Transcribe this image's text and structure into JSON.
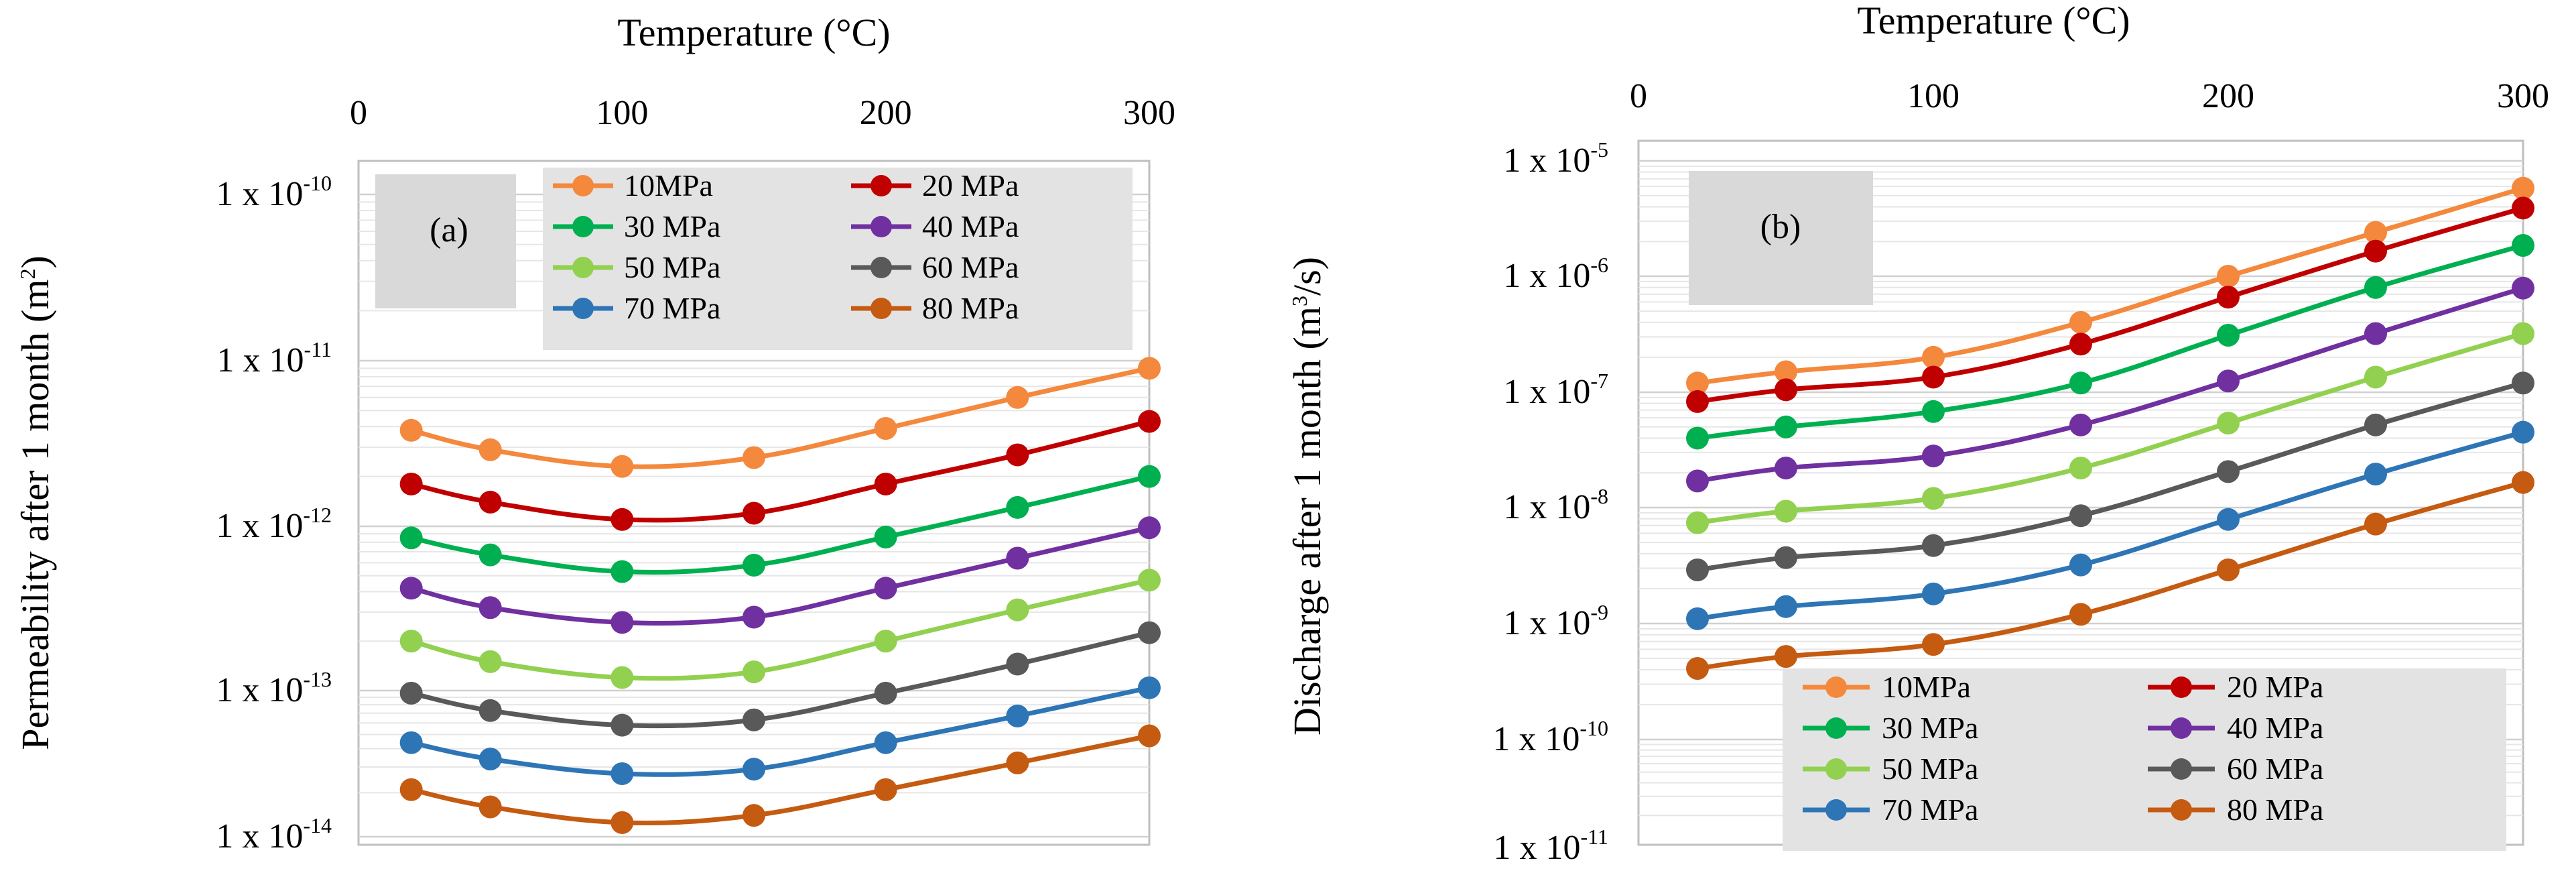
{
  "chart_data": [
    {
      "id": "a",
      "type": "line",
      "panel_label": "(a)",
      "xlabel": "Temperature (°C)",
      "ylabel": "Permeability after 1 month (m²)",
      "ylabel_parts": [
        "Permeability after 1 month (m",
        "2",
        ")"
      ],
      "xlim": [
        0,
        300
      ],
      "xticks": [
        "0",
        "100",
        "200",
        "300"
      ],
      "ylog_range": [
        -14.1,
        -9.9
      ],
      "ytick_labels": [
        {
          "exp": -10,
          "base": "1 x 10",
          "sup": "-10"
        },
        {
          "exp": -11,
          "base": "1 x 10",
          "sup": "-11"
        },
        {
          "exp": -12,
          "base": "1 x 10",
          "sup": "-12"
        },
        {
          "exp": -13,
          "base": "1 x 10",
          "sup": "-13"
        },
        {
          "exp": -14,
          "base": "1 x 10",
          "sup": "-14"
        }
      ],
      "x": [
        20,
        50,
        100,
        150,
        200,
        250,
        300
      ],
      "series": [
        {
          "name": "10MPa",
          "color": "#f4883c",
          "values": [
            3.8e-12,
            2.9e-12,
            2.3e-12,
            2.6e-12,
            3.9e-12,
            6e-12,
            9e-12
          ]
        },
        {
          "name": "20 MPa",
          "color": "#c00000",
          "values": [
            1.8e-12,
            1.4e-12,
            1.1e-12,
            1.2e-12,
            1.8e-12,
            2.7e-12,
            4.3e-12
          ]
        },
        {
          "name": "30 MPa",
          "color": "#00b050",
          "values": [
            8.5e-13,
            6.7e-13,
            5.3e-13,
            5.8e-13,
            8.6e-13,
            1.3e-12,
            2e-12
          ]
        },
        {
          "name": "40 MPa",
          "color": "#7030a0",
          "values": [
            4.2e-13,
            3.2e-13,
            2.6e-13,
            2.8e-13,
            4.2e-13,
            6.4e-13,
            9.8e-13
          ]
        },
        {
          "name": "50 MPa",
          "color": "#92d050",
          "values": [
            2e-13,
            1.5e-13,
            1.2e-13,
            1.3e-13,
            2e-13,
            3.1e-13,
            4.7e-13
          ]
        },
        {
          "name": "60 MPa",
          "color": "#595959",
          "values": [
            9.6e-14,
            7.3e-14,
            5.8e-14,
            6.3e-14,
            9.6e-14,
            1.45e-13,
            2.25e-13
          ]
        },
        {
          "name": "70 MPa",
          "color": "#2e75b6",
          "values": [
            4.4e-14,
            3.4e-14,
            2.7e-14,
            2.9e-14,
            4.4e-14,
            6.7e-14,
            1.04e-13
          ]
        },
        {
          "name": "80 MPa",
          "color": "#c55a11",
          "values": [
            2.1e-14,
            1.6e-14,
            1.25e-14,
            1.4e-14,
            2.1e-14,
            3.2e-14,
            4.9e-14
          ]
        }
      ]
    },
    {
      "id": "b",
      "type": "line",
      "panel_label": "(b)",
      "xlabel": "Temperature (°C)",
      "ylabel": "Discharge after 1 month (m³/s)",
      "ylabel_parts": [
        "Discharge after 1 month (m",
        "3",
        "/s)"
      ],
      "xlim": [
        0,
        300
      ],
      "xticks": [
        "0",
        "100",
        "200",
        "300"
      ],
      "ylog_range": [
        -11,
        -5
      ],
      "ytick_labels": [
        {
          "exp": -5,
          "base": "1 x 10",
          "sup": "-5"
        },
        {
          "exp": -6,
          "base": "1 x 10",
          "sup": "-6"
        },
        {
          "exp": -7,
          "base": "1 x 10",
          "sup": "-7"
        },
        {
          "exp": -8,
          "base": "1 x 10",
          "sup": "-8"
        },
        {
          "exp": -9,
          "base": "1 x 10",
          "sup": "-9"
        },
        {
          "exp": -10,
          "base": "1 x 10",
          "sup": "-10"
        },
        {
          "exp": -11,
          "base": "1 x 10",
          "sup": "-11"
        }
      ],
      "x": [
        20,
        50,
        100,
        150,
        200,
        250,
        300
      ],
      "series": [
        {
          "name": "10MPa",
          "color": "#f4883c",
          "values": [
            1.2e-07,
            1.5e-07,
            2e-07,
            4e-07,
            1e-06,
            2.4e-06,
            5.8e-06
          ]
        },
        {
          "name": "20 MPa",
          "color": "#c00000",
          "values": [
            8.3e-08,
            1.05e-07,
            1.35e-07,
            2.6e-07,
            6.6e-07,
            1.65e-06,
            3.9e-06
          ]
        },
        {
          "name": "30 MPa",
          "color": "#00b050",
          "values": [
            4e-08,
            5e-08,
            6.8e-08,
            1.2e-07,
            3.1e-07,
            8e-07,
            1.85e-06
          ]
        },
        {
          "name": "40 MPa",
          "color": "#7030a0",
          "values": [
            1.7e-08,
            2.2e-08,
            2.8e-08,
            5.2e-08,
            1.25e-07,
            3.2e-07,
            7.9e-07
          ]
        },
        {
          "name": "50 MPa",
          "color": "#92d050",
          "values": [
            7.4e-09,
            9.3e-09,
            1.2e-08,
            2.2e-08,
            5.4e-08,
            1.35e-07,
            3.2e-07
          ]
        },
        {
          "name": "60 MPa",
          "color": "#595959",
          "values": [
            2.9e-09,
            3.7e-09,
            4.7e-09,
            8.5e-09,
            2.05e-08,
            5.2e-08,
            1.2e-07
          ]
        },
        {
          "name": "70 MPa",
          "color": "#2e75b6",
          "values": [
            1.1e-09,
            1.4e-09,
            1.8e-09,
            3.2e-09,
            7.9e-09,
            1.95e-08,
            4.5e-08
          ]
        },
        {
          "name": "80 MPa",
          "color": "#c55a11",
          "values": [
            4.1e-10,
            5.2e-10,
            6.6e-10,
            1.2e-09,
            2.9e-09,
            7.2e-09,
            1.65e-08
          ]
        }
      ]
    }
  ]
}
